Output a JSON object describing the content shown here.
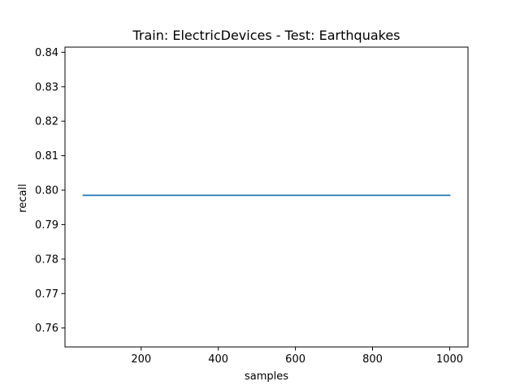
{
  "chart_data": {
    "type": "line",
    "title": "Train: ElectricDevices - Test: Earthquakes",
    "xlabel": "samples",
    "ylabel": "recall",
    "xlim": [
      2.5,
      1047.5
    ],
    "ylim": [
      0.7545,
      0.8415
    ],
    "xticks": [
      200,
      400,
      600,
      800,
      1000
    ],
    "yticks": [
      0.76,
      0.77,
      0.78,
      0.79,
      0.8,
      0.81,
      0.82,
      0.83,
      0.84
    ],
    "x_tick_labels": [
      "200",
      "400",
      "600",
      "800",
      "1000"
    ],
    "y_tick_labels": [
      "0.76",
      "0.77",
      "0.78",
      "0.79",
      "0.80",
      "0.81",
      "0.82",
      "0.83",
      "0.84"
    ],
    "grid": false,
    "series": [
      {
        "color": "#1f77b4",
        "x": [
          50,
          100,
          200,
          300,
          400,
          500,
          600,
          700,
          800,
          900,
          1000
        ],
        "y": [
          0.7985,
          0.7985,
          0.7985,
          0.7985,
          0.7985,
          0.7985,
          0.7985,
          0.7985,
          0.7985,
          0.7985,
          0.7985
        ]
      }
    ]
  }
}
